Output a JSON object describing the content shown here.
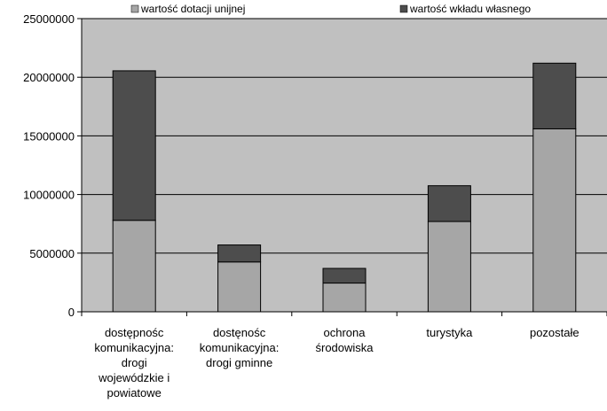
{
  "chart_data": {
    "type": "bar",
    "stacked": true,
    "categories": [
      "dostępnośc\nkomunikacyjna:\ndrogi\nwojewódzkie i\npowiatowe",
      "dostęnośc\nkomunikacyjna:\ndrogi gminne",
      "ochrona\nśrodowiska",
      "turystyka",
      "pozostałe"
    ],
    "series": [
      {
        "name": "wartość dotacji unijnej",
        "color": "#a6a6a6",
        "values": [
          7800000,
          4250000,
          2450000,
          7700000,
          15600000
        ]
      },
      {
        "name": "wartość wkładu własnego",
        "color": "#4d4d4d",
        "values": [
          12750000,
          1450000,
          1250000,
          3050000,
          5600000
        ]
      }
    ],
    "ylim": [
      0,
      25000000
    ],
    "yticks": [
      "0",
      "5000000",
      "10000000",
      "15000000",
      "20000000",
      "25000000"
    ],
    "grid": true,
    "legend_position": "top",
    "plot_background": "#c0c0c0"
  }
}
